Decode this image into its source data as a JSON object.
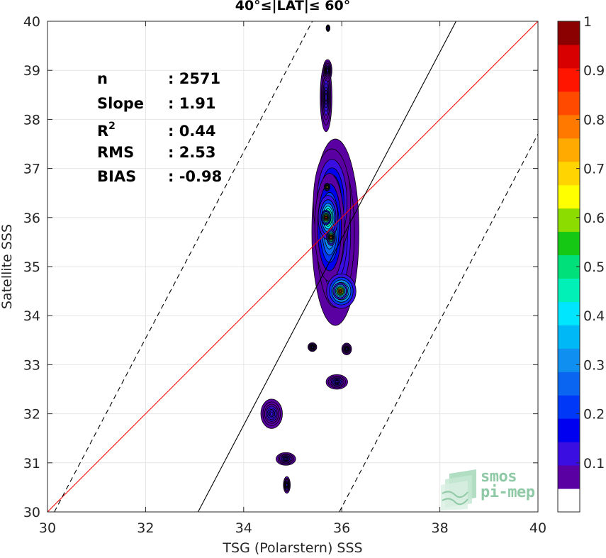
{
  "chart_data": {
    "type": "heatmap",
    "subtype": "filled-contour density",
    "title": "40°≤|LAT|≤ 60°",
    "xlabel": "TSG (Polarstern) SSS",
    "ylabel": "Satellite SSS",
    "xlim": [
      30,
      40
    ],
    "ylim": [
      30,
      40
    ],
    "xticks": [
      30,
      32,
      34,
      36,
      38,
      40
    ],
    "yticks": [
      30,
      31,
      32,
      33,
      34,
      35,
      36,
      37,
      38,
      39,
      40
    ],
    "grid": true,
    "colorbar": {
      "range": [
        0,
        1
      ],
      "ticks": [
        0.1,
        0.2,
        0.3,
        0.4,
        0.5,
        0.6,
        0.7,
        0.8,
        0.9,
        1
      ],
      "tick_labels": [
        "0.1",
        "0.2",
        "0.3",
        "0.4",
        "0.5",
        "0.6",
        "0.7",
        "0.8",
        "0.9",
        "1"
      ],
      "colors": [
        "#ffffff",
        "#5a00a3",
        "#3a0ee0",
        "#0000f0",
        "#0038f8",
        "#0a66f0",
        "#0f8ff0",
        "#00b8f5",
        "#00e6ff",
        "#00f0b8",
        "#00e07a",
        "#14c814",
        "#8cdc00",
        "#ffff00",
        "#ffd400",
        "#ffaa00",
        "#ff7800",
        "#ff4a00",
        "#ff1500",
        "#d80000",
        "#8b0000"
      ]
    },
    "lines": [
      {
        "name": "identity",
        "color": "#ff0000",
        "style": "solid",
        "points": [
          [
            30,
            30
          ],
          [
            40,
            40
          ]
        ]
      },
      {
        "name": "fit",
        "color": "#000000",
        "style": "solid",
        "points": [
          [
            33.07,
            30
          ],
          [
            38.33,
            40
          ]
        ]
      },
      {
        "name": "upper-bound",
        "color": "#000000",
        "style": "dashed",
        "points": [
          [
            30.14,
            30
          ],
          [
            35.4,
            40
          ]
        ]
      },
      {
        "name": "lower-bound",
        "color": "#000000",
        "style": "dashed",
        "points": [
          [
            35.95,
            30
          ],
          [
            40,
            37.7
          ]
        ]
      }
    ],
    "blobs": [
      {
        "cx": 35.87,
        "cy": 35.7,
        "rx": 0.48,
        "ry": 1.9,
        "level": 0.12
      },
      {
        "cx": 35.8,
        "cy": 36.3,
        "rx": 0.38,
        "ry": 1.1,
        "level": 0.25
      },
      {
        "cx": 35.75,
        "cy": 35.8,
        "rx": 0.3,
        "ry": 1.1,
        "level": 0.4
      },
      {
        "cx": 35.72,
        "cy": 36.0,
        "rx": 0.2,
        "ry": 0.45,
        "level": 0.62
      },
      {
        "cx": 35.68,
        "cy": 36.0,
        "rx": 0.1,
        "ry": 0.15,
        "level": 0.88
      },
      {
        "cx": 35.78,
        "cy": 35.6,
        "rx": 0.09,
        "ry": 0.17,
        "level": 0.8
      },
      {
        "cx": 35.7,
        "cy": 36.62,
        "rx": 0.06,
        "ry": 0.08,
        "level": 0.66
      },
      {
        "cx": 35.99,
        "cy": 34.5,
        "rx": 0.3,
        "ry": 0.35,
        "level": 0.55
      },
      {
        "cx": 35.97,
        "cy": 34.5,
        "rx": 0.15,
        "ry": 0.17,
        "level": 0.85
      },
      {
        "cx": 35.68,
        "cy": 38.45,
        "rx": 0.12,
        "ry": 0.7,
        "level": 0.1
      },
      {
        "cx": 35.71,
        "cy": 39.0,
        "rx": 0.09,
        "ry": 0.22,
        "level": 0.08
      },
      {
        "cx": 35.4,
        "cy": 33.36,
        "rx": 0.09,
        "ry": 0.09,
        "level": 0.08
      },
      {
        "cx": 36.1,
        "cy": 33.32,
        "rx": 0.1,
        "ry": 0.12,
        "level": 0.08
      },
      {
        "cx": 35.9,
        "cy": 32.65,
        "rx": 0.22,
        "ry": 0.15,
        "level": 0.1
      },
      {
        "cx": 34.57,
        "cy": 32.0,
        "rx": 0.22,
        "ry": 0.3,
        "level": 0.1
      },
      {
        "cx": 34.86,
        "cy": 31.08,
        "rx": 0.2,
        "ry": 0.13,
        "level": 0.1
      },
      {
        "cx": 34.88,
        "cy": 30.55,
        "rx": 0.07,
        "ry": 0.17,
        "level": 0.1
      },
      {
        "cx": 35.72,
        "cy": 39.86,
        "rx": 0.04,
        "ry": 0.07,
        "level": 0.08
      }
    ]
  },
  "stats": {
    "n_label": "n",
    "n_value": ": 2571",
    "slope_label": "Slope",
    "slope_value": ": 1.91",
    "r2_label": "R",
    "r2_sup": "2",
    "r2_value": ": 0.44",
    "rms_label": "RMS",
    "rms_value": ": 2.53",
    "bias_label": "BIAS",
    "bias_value": ": -0.98"
  },
  "logo": {
    "line1": "smos",
    "line2": "pi-mep",
    "color": "#8fc9a6"
  }
}
